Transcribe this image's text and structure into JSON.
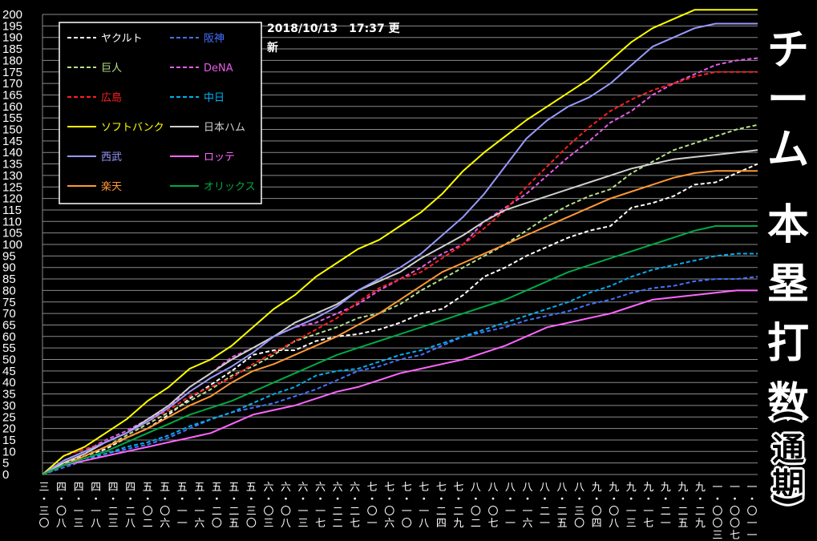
{
  "stamp": {
    "date": "2018/10/13　17:37 更",
    "line2": "新"
  },
  "title": {
    "chars": [
      "チ",
      "ー",
      "ム",
      "本",
      "塁",
      "打",
      "数"
    ],
    "sub": [
      "(",
      "通",
      "期",
      ")"
    ]
  },
  "colors": {
    "background": "#000000",
    "grid": "#8a8a8a"
  },
  "chart_data": {
    "type": "line",
    "ylim": [
      0,
      200
    ],
    "yticks": [
      0,
      5,
      10,
      15,
      20,
      25,
      30,
      35,
      40,
      45,
      50,
      55,
      60,
      65,
      70,
      75,
      80,
      85,
      90,
      95,
      100,
      105,
      110,
      115,
      120,
      125,
      130,
      135,
      140,
      145,
      150,
      155,
      160,
      165,
      170,
      175,
      180,
      185,
      190,
      195,
      200
    ],
    "xticks": [
      [
        "三",
        "三",
        "〇"
      ],
      [
        "四",
        "〇",
        "八"
      ],
      [
        "四",
        "一",
        "三"
      ],
      [
        "四",
        "一",
        "八"
      ],
      [
        "四",
        "二",
        "三"
      ],
      [
        "四",
        "二",
        "八"
      ],
      [
        "五",
        "〇",
        "二"
      ],
      [
        "五",
        "〇",
        "六"
      ],
      [
        "五",
        "一",
        "一"
      ],
      [
        "五",
        "一",
        "六"
      ],
      [
        "五",
        "二",
        "〇"
      ],
      [
        "五",
        "二",
        "五"
      ],
      [
        "五",
        "三",
        "〇"
      ],
      [
        "六",
        "〇",
        "三"
      ],
      [
        "六",
        "〇",
        "八"
      ],
      [
        "六",
        "一",
        "三"
      ],
      [
        "六",
        "一",
        "七"
      ],
      [
        "六",
        "二",
        "二"
      ],
      [
        "六",
        "二",
        "七"
      ],
      [
        "七",
        "〇",
        "一"
      ],
      [
        "七",
        "〇",
        "六"
      ],
      [
        "七",
        "一",
        "〇"
      ],
      [
        "七",
        "一",
        "八"
      ],
      [
        "七",
        "二",
        "四"
      ],
      [
        "七",
        "二",
        "九"
      ],
      [
        "八",
        "〇",
        "二"
      ],
      [
        "八",
        "〇",
        "七"
      ],
      [
        "八",
        "一",
        "一"
      ],
      [
        "八",
        "一",
        "六"
      ],
      [
        "八",
        "二",
        "一"
      ],
      [
        "八",
        "二",
        "五"
      ],
      [
        "八",
        "三",
        "〇"
      ],
      [
        "九",
        "〇",
        "四"
      ],
      [
        "九",
        "〇",
        "八"
      ],
      [
        "九",
        "一",
        "三"
      ],
      [
        "九",
        "一",
        "七"
      ],
      [
        "九",
        "二",
        "一"
      ],
      [
        "九",
        "二",
        "五"
      ],
      [
        "九",
        "二",
        "九"
      ],
      [
        "一",
        "〇",
        "〇",
        "三"
      ],
      [
        "一",
        "〇",
        "〇",
        "七"
      ],
      [
        "一",
        "〇",
        "一",
        "一"
      ]
    ],
    "series": [
      {
        "name": "ヤクルト",
        "color": "#ffffff",
        "dash": true,
        "values": [
          0,
          5,
          8,
          11,
          16,
          20,
          26,
          33,
          39,
          45,
          52,
          54,
          54,
          58,
          60,
          61,
          63,
          66,
          70,
          72,
          78,
          86,
          90,
          95,
          99,
          103,
          106,
          108,
          116,
          118,
          121,
          126,
          127,
          131,
          135
        ]
      },
      {
        "name": "阪神",
        "color": "#4472ff",
        "dash": true,
        "values": [
          0,
          3,
          6,
          9,
          11,
          13,
          16,
          20,
          24,
          27,
          29,
          31,
          34,
          37,
          41,
          45,
          47,
          50,
          52,
          56,
          60,
          62,
          64,
          67,
          69,
          71,
          74,
          76,
          79,
          81,
          82,
          84,
          85,
          85,
          86
        ]
      },
      {
        "name": "巨人",
        "color": "#b7e08a",
        "dash": true,
        "values": [
          0,
          4,
          8,
          12,
          17,
          22,
          27,
          32,
          37,
          43,
          47,
          52,
          58,
          61,
          64,
          68,
          70,
          74,
          80,
          85,
          90,
          95,
          100,
          106,
          112,
          117,
          121,
          124,
          131,
          136,
          141,
          144,
          147,
          150,
          152
        ]
      },
      {
        "name": "DeNA",
        "color": "#e85ce8",
        "dash": true,
        "values": [
          0,
          6,
          10,
          15,
          19,
          24,
          29,
          38,
          44,
          51,
          55,
          60,
          64,
          66,
          70,
          74,
          80,
          85,
          90,
          96,
          100,
          110,
          116,
          122,
          130,
          138,
          145,
          153,
          158,
          165,
          170,
          174,
          178,
          180,
          181
        ]
      },
      {
        "name": "広島",
        "color": "#ff2020",
        "dash": true,
        "values": [
          0,
          8,
          11,
          14,
          18,
          23,
          28,
          34,
          38,
          42,
          48,
          53,
          58,
          63,
          68,
          75,
          81,
          85,
          88,
          94,
          100,
          107,
          115,
          125,
          134,
          143,
          151,
          158,
          163,
          167,
          170,
          173,
          175,
          175,
          175
        ]
      },
      {
        "name": "中日",
        "color": "#00b0f0",
        "dash": true,
        "values": [
          0,
          4,
          7,
          9,
          12,
          14,
          17,
          21,
          24,
          27,
          31,
          35,
          38,
          43,
          45,
          46,
          49,
          52,
          54,
          57,
          60,
          63,
          66,
          69,
          72,
          75,
          79,
          82,
          86,
          89,
          91,
          93,
          95,
          96,
          96
        ]
      },
      {
        "name": "ソフトバンク",
        "color": "#ffff00",
        "dash": false,
        "values": [
          0,
          8,
          12,
          18,
          24,
          32,
          38,
          46,
          50,
          56,
          64,
          72,
          78,
          86,
          92,
          98,
          102,
          108,
          114,
          122,
          132,
          140,
          147,
          154,
          160,
          166,
          172,
          180,
          188,
          194,
          198,
          202,
          202,
          202,
          202
        ]
      },
      {
        "name": "日本ハム",
        "color": "#d0d0d0",
        "dash": false,
        "values": [
          0,
          5,
          9,
          14,
          18,
          24,
          30,
          38,
          44,
          50,
          55,
          60,
          66,
          70,
          74,
          80,
          84,
          88,
          94,
          99,
          104,
          110,
          115,
          118,
          121,
          124,
          127,
          130,
          133,
          135,
          137,
          138,
          139,
          140,
          141
        ]
      },
      {
        "name": "西武",
        "color": "#9999ff",
        "dash": false,
        "values": [
          0,
          6,
          10,
          14,
          18,
          23,
          29,
          36,
          42,
          47,
          53,
          60,
          64,
          68,
          73,
          80,
          85,
          90,
          96,
          104,
          112,
          122,
          134,
          146,
          154,
          160,
          164,
          170,
          178,
          186,
          190,
          194,
          196,
          196,
          196
        ]
      },
      {
        "name": "ロッテ",
        "color": "#ff66ff",
        "dash": false,
        "values": [
          0,
          4,
          6,
          8,
          10,
          12,
          14,
          16,
          18,
          22,
          26,
          28,
          30,
          33,
          36,
          38,
          41,
          44,
          46,
          48,
          50,
          53,
          56,
          60,
          64,
          66,
          68,
          70,
          73,
          76,
          77,
          78,
          79,
          80,
          80
        ]
      },
      {
        "name": "楽天",
        "color": "#ff9933",
        "dash": false,
        "values": [
          0,
          4,
          8,
          12,
          16,
          20,
          25,
          30,
          34,
          40,
          45,
          48,
          52,
          56,
          60,
          65,
          70,
          76,
          82,
          88,
          92,
          96,
          100,
          104,
          108,
          112,
          116,
          120,
          123,
          126,
          129,
          131,
          132,
          132,
          132
        ]
      },
      {
        "name": "オリックス",
        "color": "#00aa44",
        "dash": false,
        "values": [
          0,
          4,
          7,
          10,
          14,
          18,
          22,
          26,
          29,
          32,
          36,
          40,
          44,
          48,
          52,
          55,
          58,
          61,
          64,
          67,
          70,
          73,
          76,
          80,
          84,
          88,
          91,
          94,
          97,
          100,
          103,
          106,
          108,
          108,
          108
        ]
      }
    ]
  }
}
